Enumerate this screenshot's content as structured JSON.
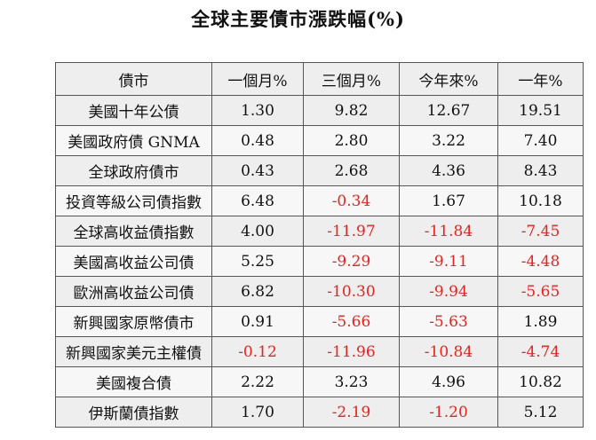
{
  "title": "全球主要債市漲跌幅(%)",
  "chart_data": {
    "type": "table",
    "columns": [
      "債市",
      "一個月%",
      "三個月%",
      "今年來%",
      "一年%"
    ],
    "rows": [
      [
        "美國十年公債",
        "1.30",
        "9.82",
        "12.67",
        "19.51"
      ],
      [
        "美國政府債 GNMA",
        "0.48",
        "2.80",
        "3.22",
        "7.40"
      ],
      [
        "全球政府債市",
        "0.43",
        "2.68",
        "4.36",
        "8.43"
      ],
      [
        "投資等級公司債指數",
        "6.48",
        "-0.34",
        "1.67",
        "10.18"
      ],
      [
        "全球高收益債指數",
        "4.00",
        "-11.97",
        "-11.84",
        "-7.45"
      ],
      [
        "美國高收益公司債",
        "5.25",
        "-9.29",
        "-9.11",
        "-4.48"
      ],
      [
        "歐洲高收益公司債",
        "6.82",
        "-10.30",
        "-9.94",
        "-5.65"
      ],
      [
        "新興國家原幣債市",
        "0.91",
        "-5.66",
        "-5.63",
        "1.89"
      ],
      [
        "新興國家美元主權債",
        "-0.12",
        "-11.96",
        "-10.84",
        "-4.74"
      ],
      [
        "美國複合債",
        "2.22",
        "3.23",
        "4.96",
        "10.82"
      ],
      [
        "伊斯蘭債指數",
        "1.70",
        "-2.19",
        "-1.20",
        "5.12"
      ]
    ]
  },
  "colors": {
    "negative": "#e8231d",
    "text": "#111111",
    "cell_bg": "#eeeeee",
    "border": "#555555"
  }
}
